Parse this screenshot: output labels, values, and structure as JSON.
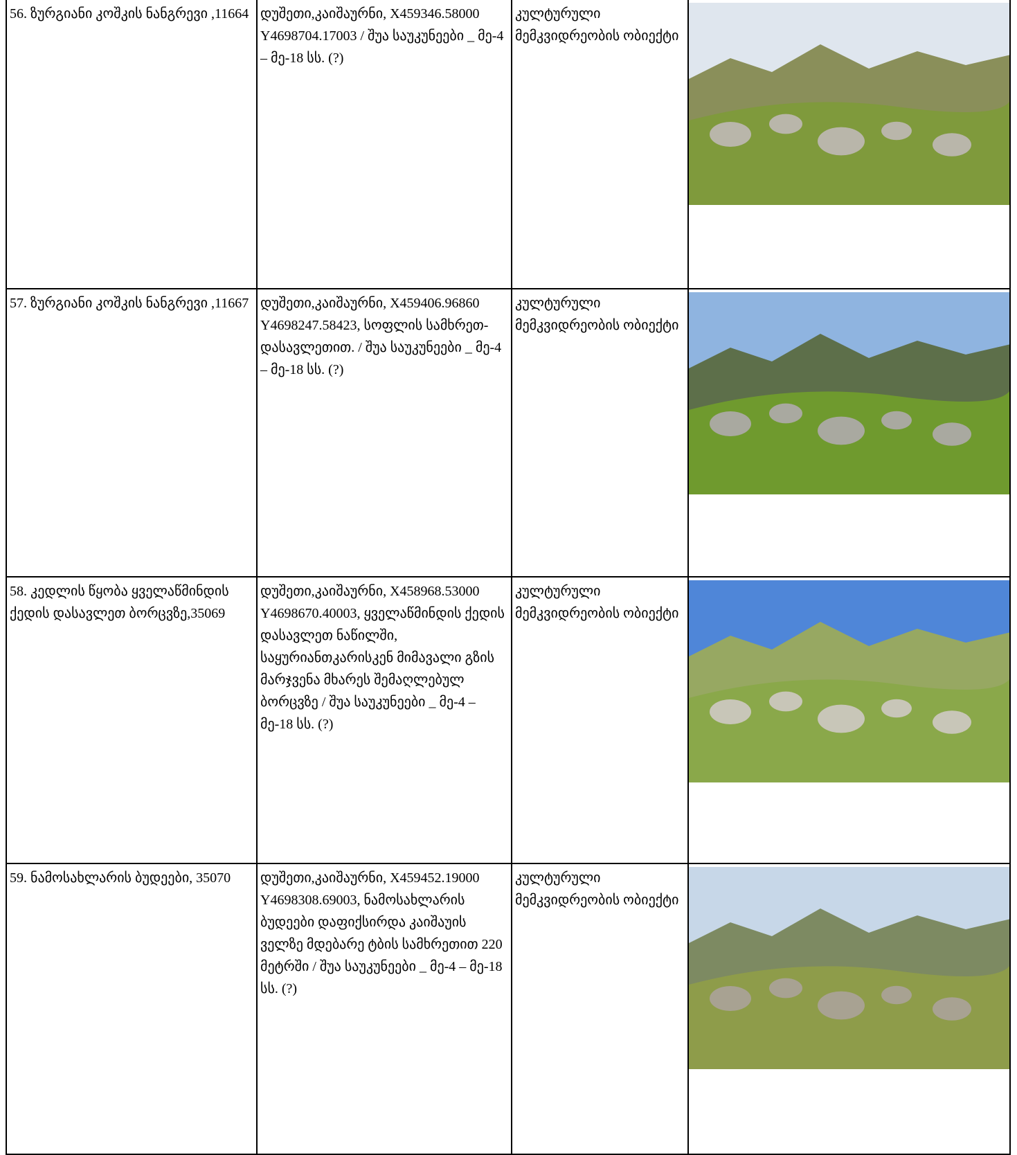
{
  "table": {
    "rows": [
      [
        "56. ზურგიანი კოშკის ნანგრევი ,11664",
        "დუშეთი,კაიშაურნი, X459346.58000 Y4698704.17003 / შუა საუკუნეები _ მე-4 – მე-18 სს. (?)",
        "კულტურული მემკვიდრეობის ობიექტი"
      ],
      [
        "57. ზურგიანი კოშკის ნანგრევი ,11667",
        "დუშეთი,კაიშაურნი, X459406.96860 Y4698247.58423, სოფლის სამხრეთ-დასავლეთით. / შუა საუკუნეები _ მე-4 – მე-18 სს. (?)",
        "კულტურული მემკვიდრეობის ობიექტი"
      ],
      [
        "58. კედლის წყობა ყველაწმინდის ქედის დასავლეთ ბორცვზე,35069",
        "დუშეთი,კაიშაურნი, X458968.53000 Y4698670.40003, ყველაწმინდის ქედის დასავლეთ ნაწილში, საყურიანთკარისკენ მიმავალი გზის მარჯვენა მხარეს შემაღლებულ ბორცვზე / შუა საუკუნეები _ მე-4 – მე-18 სს. (?)",
        "კულტურული მემკვიდრეობის ობიექტი"
      ],
      [
        "59. ნამოსახლარის ბუდეები, 35070",
        "დუშეთი,კაიშაურნი, X459452.19000 Y4698308.69003, ნამოსახლარის ბუდეები დაფიქსირდა კაიშაუის ველზე მდებარე ტბის სამხრეთით 220 მეტრში / შუა საუკუნეები _ მე-4 – მე-18 სს. (?)",
        "კულტურული მემკვიდრეობის ობიექტი"
      ]
    ]
  }
}
